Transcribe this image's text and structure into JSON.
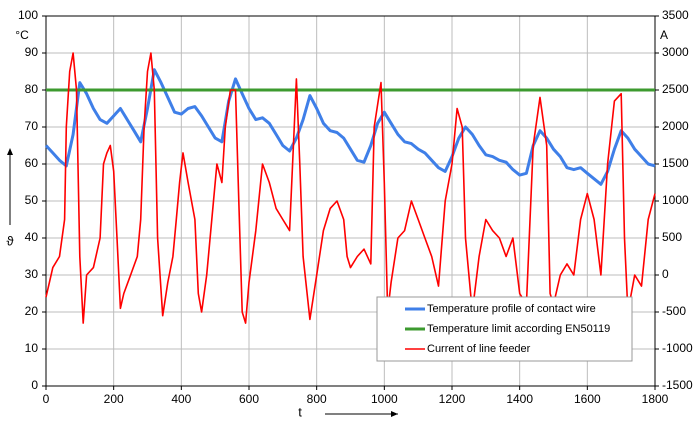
{
  "chart_data": {
    "type": "line",
    "xlabel": "t",
    "ylabel": "ϑ",
    "y_unit": "°C",
    "y2_unit": "A",
    "xlim": [
      0,
      1800
    ],
    "xticks": [
      0,
      200,
      400,
      600,
      800,
      1000,
      1200,
      1400,
      1600,
      1800
    ],
    "ylim": [
      0,
      100
    ],
    "yticks": [
      0,
      10,
      20,
      30,
      40,
      50,
      60,
      70,
      80,
      90,
      100
    ],
    "y2lim": [
      -1500,
      3500
    ],
    "y2ticks": [
      -1500,
      -1000,
      -500,
      0,
      500,
      1000,
      1500,
      2000,
      2500,
      3000,
      3500
    ],
    "grid": true,
    "legend": "lower right",
    "series": [
      {
        "name": "Temperature profile of contact wire",
        "color": "#3f7fe8",
        "x": [
          0,
          20,
          40,
          60,
          80,
          100,
          120,
          140,
          160,
          180,
          200,
          220,
          240,
          260,
          280,
          300,
          320,
          340,
          360,
          380,
          400,
          420,
          440,
          460,
          480,
          500,
          520,
          540,
          560,
          580,
          600,
          620,
          640,
          660,
          680,
          700,
          720,
          740,
          760,
          780,
          800,
          820,
          840,
          860,
          880,
          900,
          920,
          940,
          960,
          980,
          1000,
          1020,
          1040,
          1060,
          1080,
          1100,
          1120,
          1140,
          1160,
          1180,
          1200,
          1220,
          1240,
          1260,
          1280,
          1300,
          1320,
          1340,
          1360,
          1380,
          1400,
          1420,
          1440,
          1460,
          1480,
          1500,
          1520,
          1540,
          1560,
          1580,
          1600,
          1620,
          1640,
          1660,
          1680,
          1700,
          1720,
          1740,
          1760,
          1780,
          1800
        ],
        "values": [
          65,
          63,
          61,
          59.5,
          68,
          82,
          79,
          75,
          72,
          71,
          73,
          75,
          72,
          69,
          66,
          75,
          85.5,
          82,
          78,
          74,
          73.5,
          75,
          75.5,
          73,
          70,
          67,
          66,
          77,
          83,
          79,
          75,
          72,
          72.5,
          71,
          68,
          65,
          63.5,
          67,
          72,
          78.5,
          75,
          71,
          69,
          68.5,
          67,
          64,
          61,
          60.5,
          65,
          71,
          74,
          71,
          68,
          66,
          65.5,
          64,
          63,
          61,
          59,
          58,
          62,
          67,
          70,
          68,
          65,
          62.5,
          62,
          61,
          60.5,
          58.5,
          57,
          57.5,
          65,
          69,
          67,
          64,
          62,
          59,
          58.5,
          59,
          57.5,
          56,
          54.5,
          58,
          64,
          69,
          67,
          64,
          62,
          60,
          59.5
        ]
      },
      {
        "name": "Temperature limit according EN50119",
        "color": "#3c9a2f",
        "x": [
          0,
          1800
        ],
        "values": [
          80,
          80
        ]
      },
      {
        "name": "Current of line feeder",
        "color": "#ff0000",
        "axis": "y2",
        "x": [
          0,
          10,
          20,
          40,
          55,
          60,
          70,
          80,
          90,
          100,
          110,
          120,
          140,
          160,
          170,
          180,
          190,
          200,
          210,
          220,
          230,
          250,
          270,
          280,
          290,
          300,
          310,
          320,
          330,
          345,
          360,
          375,
          385,
          395,
          405,
          420,
          440,
          450,
          460,
          475,
          490,
          505,
          520,
          530,
          545,
          560,
          570,
          580,
          590,
          600,
          620,
          640,
          660,
          680,
          700,
          720,
          740,
          750,
          760,
          780,
          800,
          820,
          840,
          860,
          880,
          890,
          900,
          920,
          940,
          960,
          970,
          990,
          1000,
          1010,
          1020,
          1040,
          1060,
          1080,
          1100,
          1120,
          1140,
          1160,
          1180,
          1200,
          1215,
          1230,
          1240,
          1260,
          1280,
          1300,
          1320,
          1340,
          1360,
          1380,
          1400,
          1420,
          1440,
          1460,
          1480,
          1490,
          1500,
          1520,
          1540,
          1560,
          1580,
          1600,
          1620,
          1640,
          1660,
          1680,
          1700,
          1710,
          1720,
          1740,
          1760,
          1780,
          1800
        ],
        "values": [
          -300,
          -100,
          100,
          250,
          750,
          2000,
          2750,
          3000,
          2500,
          250,
          -650,
          0,
          100,
          500,
          1500,
          1650,
          1750,
          1400,
          500,
          -450,
          -250,
          0,
          250,
          750,
          2000,
          2750,
          3000,
          2500,
          500,
          -550,
          -100,
          250,
          750,
          1250,
          1650,
          1250,
          750,
          -250,
          -500,
          0,
          750,
          1500,
          1250,
          2000,
          2500,
          2500,
          1000,
          -500,
          -650,
          -100,
          600,
          1500,
          1250,
          900,
          750,
          600,
          2650,
          1500,
          250,
          -600,
          0,
          600,
          900,
          1000,
          750,
          250,
          100,
          250,
          350,
          150,
          2000,
          2600,
          1250,
          -500,
          -100,
          500,
          600,
          1000,
          750,
          500,
          250,
          -150,
          1000,
          1500,
          2250,
          2000,
          500,
          -500,
          250,
          750,
          600,
          500,
          250,
          500,
          -250,
          -400,
          1750,
          2400,
          1750,
          -250,
          -400,
          0,
          150,
          0,
          750,
          1100,
          750,
          0,
          1500,
          2350,
          2450,
          500,
          -500,
          0,
          -150,
          750,
          1100
        ]
      }
    ]
  }
}
